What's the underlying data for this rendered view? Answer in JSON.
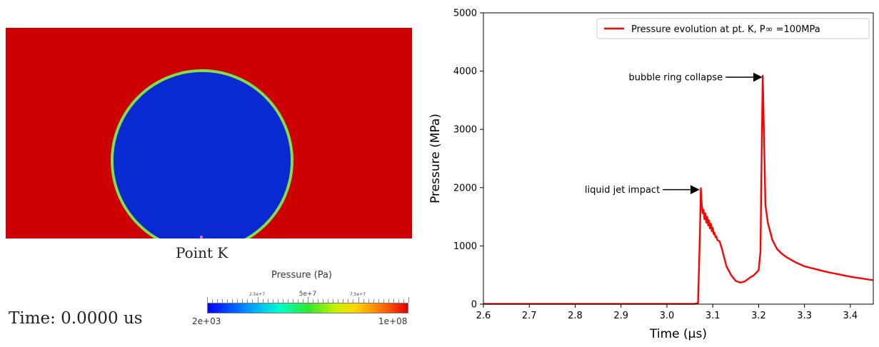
{
  "simulation": {
    "point_label": "Point K",
    "time_label": "Time: 0.0000 us",
    "colors": {
      "liquid": "#cc0000",
      "bubble": "#0a2ad1",
      "interface": "#7fe04f",
      "point": "#ff66ff"
    },
    "colorbar": {
      "title": "Pressure (Pa)",
      "min_label": "2e+03",
      "max_label": "1e+08",
      "mid_labels": [
        "2.5e+7",
        "5e+7",
        "7.5e+7"
      ]
    }
  },
  "chart_data": {
    "type": "line",
    "xlabel": "Time (µs)",
    "ylabel": "Pressure (MPa)",
    "xlim": [
      2.6,
      3.45
    ],
    "ylim": [
      0,
      5000
    ],
    "x_ticks": [
      "2.6",
      "2.7",
      "2.8",
      "2.9",
      "3.0",
      "3.1",
      "3.2",
      "3.3",
      "3.4"
    ],
    "y_ticks": [
      "0",
      "1000",
      "2000",
      "3000",
      "4000",
      "5000"
    ],
    "legend_position": "top-right",
    "grid": false,
    "series": [
      {
        "name": "Pressure evolution at pt. K, P∞ =100MPa",
        "color": "#ff0000",
        "x": [
          2.6,
          3.0,
          3.06,
          3.068,
          3.072,
          3.074,
          3.076,
          3.078,
          3.08,
          3.082,
          3.084,
          3.086,
          3.088,
          3.09,
          3.092,
          3.094,
          3.096,
          3.098,
          3.1,
          3.102,
          3.104,
          3.106,
          3.108,
          3.11,
          3.115,
          3.12,
          3.125,
          3.13,
          3.14,
          3.15,
          3.16,
          3.17,
          3.18,
          3.19,
          3.2,
          3.204,
          3.207,
          3.209,
          3.212,
          3.215,
          3.22,
          3.23,
          3.24,
          3.25,
          3.26,
          3.28,
          3.3,
          3.35,
          3.4,
          3.45
        ],
        "y": [
          5,
          5,
          5,
          20,
          1200,
          1990,
          1700,
          1560,
          1620,
          1460,
          1560,
          1400,
          1500,
          1350,
          1440,
          1300,
          1380,
          1250,
          1310,
          1200,
          1230,
          1150,
          1160,
          1100,
          1080,
          950,
          800,
          650,
          500,
          400,
          370,
          390,
          450,
          500,
          580,
          900,
          2800,
          3920,
          2800,
          1700,
          1400,
          1100,
          950,
          870,
          810,
          720,
          650,
          550,
          470,
          410
        ]
      }
    ],
    "annotations": [
      {
        "text": "liquid jet impact",
        "x": 3.072,
        "y": 1990
      },
      {
        "text": "bubble ring collapse",
        "x": 3.209,
        "y": 3920
      }
    ]
  }
}
